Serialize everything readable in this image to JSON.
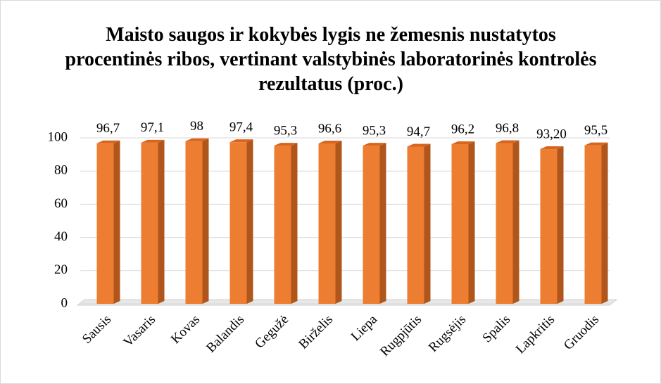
{
  "chart_data": {
    "type": "bar",
    "title": "Maisto saugos ir kokybės lygis ne žemesnis nustatytos procentinės ribos, vertinant valstybinės laboratorinės kontrolės rezultatus (proc.)",
    "categories": [
      "Sausis",
      "Vasaris",
      "Kovas",
      "Balandis",
      "Gegužė",
      "Birželis",
      "Liepa",
      "Rugpjūtis",
      "Rugsėjis",
      "Spalis",
      "Lapkritis",
      "Gruodis"
    ],
    "values": [
      96.7,
      97.1,
      98,
      97.4,
      95.3,
      96.6,
      95.3,
      94.7,
      96.2,
      96.8,
      93.2,
      95.5
    ],
    "value_labels": [
      "96,7",
      "97,1",
      "98",
      "97,4",
      "95,3",
      "96,6",
      "95,3",
      "94,7",
      "96,2",
      "96,8",
      "93,20",
      "95,5"
    ],
    "color": "#ed7d31",
    "ylim": [
      0,
      100
    ],
    "yticks": [
      0,
      20,
      40,
      60,
      80,
      100
    ],
    "grid": true
  }
}
